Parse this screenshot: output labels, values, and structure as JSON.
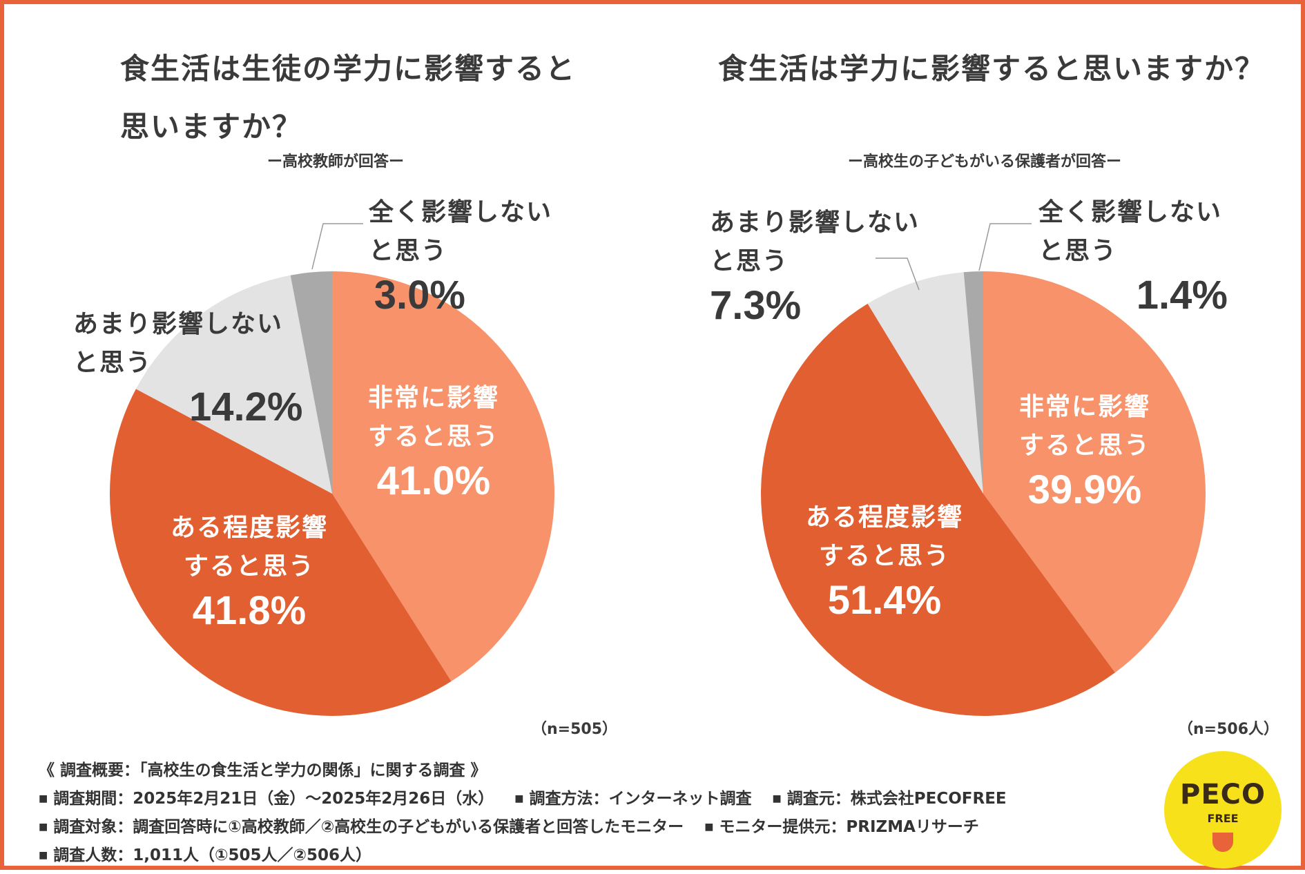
{
  "colors": {
    "frame": "#e8623a",
    "very": "#f7926a",
    "somewhat": "#e15f31",
    "notmuch": "#e3e3e3",
    "notatall": "#a9a9a9",
    "text_dark": "#3a3a3a",
    "text_on_slice": "#ffffff",
    "logo": "#f7e11a"
  },
  "left": {
    "title": "食生活は生徒の学力に影響すると思いますか？",
    "subtitle": "ー高校教師が回答ー",
    "n": "（n=505）"
  },
  "right": {
    "title": "食生活は学力に影響すると思いますか？",
    "subtitle": "ー高校生の子どもがいる保護者が回答ー",
    "n": "（n=506人）"
  },
  "chart_data": [
    {
      "type": "pie",
      "title": "食生活は生徒の学力に影響すると思いますか？",
      "subtitle": "ー高校教師が回答ー",
      "n": "n=505",
      "slices": [
        {
          "label_lines": [
            "非常に影響",
            "すると思う"
          ],
          "value": 41.0,
          "display": "41.0%",
          "color": "#f7926a"
        },
        {
          "label_lines": [
            "ある程度影響",
            "すると思う"
          ],
          "value": 41.8,
          "display": "41.8%",
          "color": "#e15f31"
        },
        {
          "label_lines": [
            "あまり影響しない",
            "と思う"
          ],
          "value": 14.2,
          "display": "14.2%",
          "color": "#e3e3e3"
        },
        {
          "label_lines": [
            "全く影響しない",
            "と思う"
          ],
          "value": 3.0,
          "display": "3.0%",
          "color": "#a9a9a9"
        }
      ]
    },
    {
      "type": "pie",
      "title": "食生活は学力に影響すると思いますか？",
      "subtitle": "ー高校生の子どもがいる保護者が回答ー",
      "n": "n=506人",
      "slices": [
        {
          "label_lines": [
            "非常に影響",
            "すると思う"
          ],
          "value": 39.9,
          "display": "39.9%",
          "color": "#f7926a"
        },
        {
          "label_lines": [
            "ある程度影響",
            "すると思う"
          ],
          "value": 51.4,
          "display": "51.4%",
          "color": "#e15f31"
        },
        {
          "label_lines": [
            "あまり影響しない",
            "と思う"
          ],
          "value": 7.3,
          "display": "7.3%",
          "color": "#e3e3e3"
        },
        {
          "label_lines": [
            "全く影響しない",
            "と思う"
          ],
          "value": 1.4,
          "display": "1.4%",
          "color": "#a9a9a9"
        }
      ]
    }
  ],
  "footer": {
    "heading": "《 調査概要：「高校生の食生活と学力の関係」に関する調査 》",
    "bullet": "■",
    "period": "調査期間：2025年2月21日（金）〜2025年2月26日（水）",
    "method": "調査方法：インターネット調査",
    "source": "調査元：株式会社PECOFREE",
    "target": "調査対象：調査回答時に①高校教師／②高校生の子どもがいる保護者と回答したモニター",
    "provider": "モニター提供元：PRIZMAリサーチ",
    "count": "調査人数：1,011人（①505人／②506人）"
  },
  "logo": {
    "text": "PECO",
    "sub": "FREE"
  }
}
